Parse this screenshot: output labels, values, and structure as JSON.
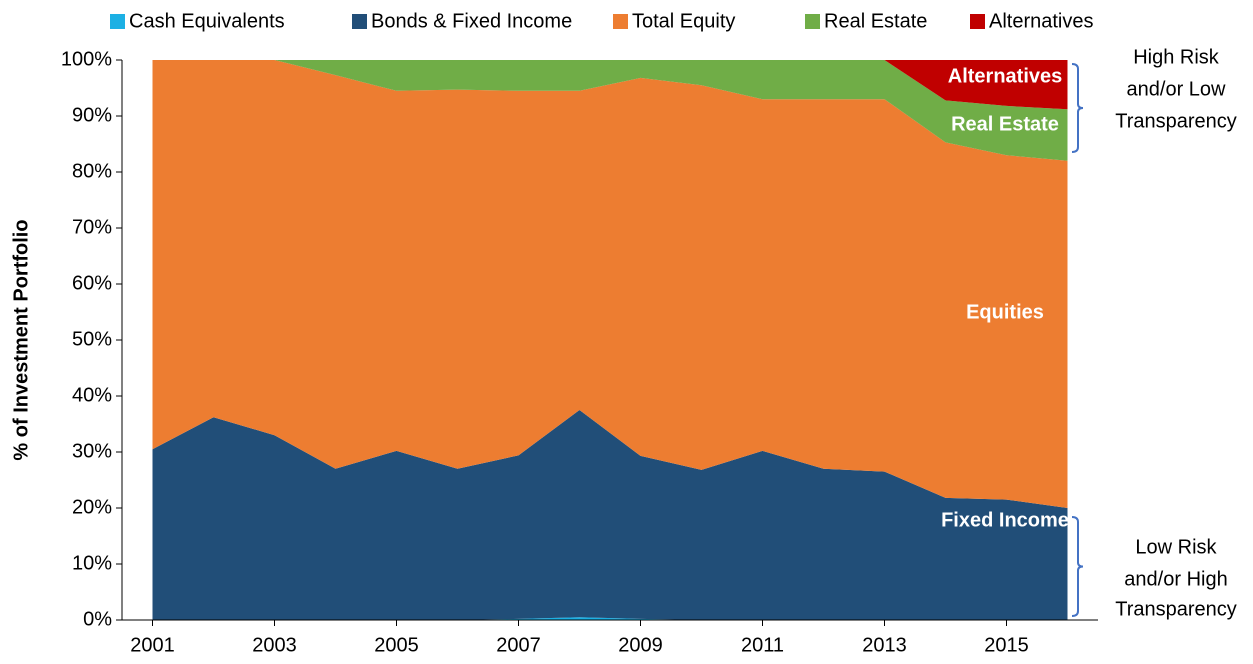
{
  "chart_data": {
    "type": "stacked_area",
    "y_label": "% of Investment Portfolio",
    "x": [
      2001,
      2002,
      2003,
      2004,
      2005,
      2006,
      2007,
      2008,
      2009,
      2010,
      2011,
      2012,
      2013,
      2014,
      2015,
      2016
    ],
    "xlim": [
      2000.5,
      2016.5
    ],
    "xticks": [
      2001,
      2003,
      2005,
      2007,
      2009,
      2011,
      2013,
      2015
    ],
    "ylim": [
      0,
      100
    ],
    "yticks": [
      {
        "value": 0,
        "label": "0%"
      },
      {
        "value": 10,
        "label": "10%"
      },
      {
        "value": 20,
        "label": "20%"
      },
      {
        "value": 30,
        "label": "30%"
      },
      {
        "value": 40,
        "label": "40%"
      },
      {
        "value": 50,
        "label": "50%"
      },
      {
        "value": 60,
        "label": "60%"
      },
      {
        "value": 70,
        "label": "70%"
      },
      {
        "value": 80,
        "label": "80%"
      },
      {
        "value": 90,
        "label": "90%"
      },
      {
        "value": 100,
        "label": "100%"
      }
    ],
    "legend": "top",
    "series": [
      {
        "name": "Cash Equivalents",
        "color": "#1cb0e4",
        "values": [
          0,
          0,
          0,
          0,
          0,
          0,
          0.2,
          0.5,
          0.2,
          0,
          0,
          0,
          0,
          0,
          0,
          0
        ]
      },
      {
        "name": "Bonds & Fixed Income",
        "color": "#214e78",
        "values": [
          30.5,
          36.2,
          33,
          27,
          30.2,
          27,
          29.2,
          37,
          29.1,
          26.8,
          30.2,
          27,
          26.5,
          21.8,
          21.5,
          20
        ]
      },
      {
        "name": "Total Equity",
        "color": "#ed7d31",
        "values": [
          69.5,
          63.8,
          67,
          70.3,
          64.3,
          67.7,
          65.1,
          57,
          67.5,
          68.7,
          62.8,
          66,
          66.5,
          63.5,
          61.5,
          62
        ]
      },
      {
        "name": "Real Estate",
        "color": "#70ad47",
        "values": [
          0,
          0,
          0,
          2.7,
          5.5,
          5.3,
          5.5,
          5.5,
          3.2,
          4.5,
          7,
          7,
          7,
          7.5,
          8.8,
          9.2
        ]
      },
      {
        "name": "Alternatives",
        "color": "#c00000",
        "values": [
          0,
          0,
          0,
          0,
          0,
          0,
          0,
          0,
          0,
          0,
          0,
          0,
          0,
          7.2,
          8.2,
          8.8
        ]
      }
    ],
    "annotations": [
      "Alternatives",
      "Real Estate",
      "Equities",
      "Fixed Income"
    ],
    "brackets": [
      {
        "lines": [
          "High Risk",
          "and/or Low",
          "Transparency"
        ]
      },
      {
        "lines": [
          "Low Risk",
          "and/or High",
          "Transparency"
        ]
      }
    ]
  }
}
